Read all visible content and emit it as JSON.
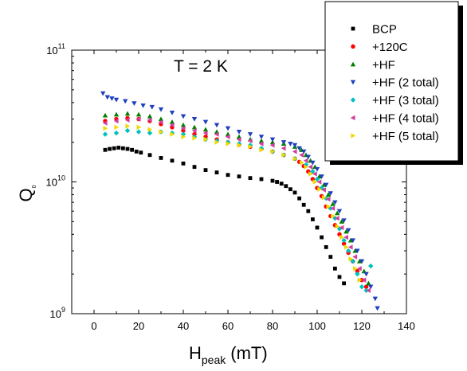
{
  "chart_data": {
    "type": "scatter",
    "annotation": "T = 2 K",
    "xlabel": {
      "main": "H",
      "sub": "peak",
      "unit": "(mT)"
    },
    "ylabel": {
      "main": "Q",
      "sub": "0"
    },
    "xlim": [
      -10,
      140
    ],
    "ylim": [
      1000000000,
      100000000000
    ],
    "y_scale": "log",
    "grid": false,
    "legend_position": "top-right",
    "x_ticks": [
      {
        "value": 0,
        "label": "0"
      },
      {
        "value": 20,
        "label": "20"
      },
      {
        "value": 40,
        "label": "40"
      },
      {
        "value": 60,
        "label": "60"
      },
      {
        "value": 80,
        "label": "80"
      },
      {
        "value": 100,
        "label": "100"
      },
      {
        "value": 120,
        "label": "120"
      },
      {
        "value": 140,
        "label": "140"
      }
    ],
    "y_ticks": [
      {
        "value": 1000000000,
        "base": "10",
        "exp": "9"
      },
      {
        "value": 10000000000,
        "base": "10",
        "exp": "10"
      },
      {
        "value": 100000000000,
        "base": "10",
        "exp": "11"
      }
    ],
    "series": [
      {
        "name": "BCP",
        "color": "#000000",
        "marker": "square",
        "x": [
          5,
          7,
          9,
          11,
          13,
          15,
          17,
          19,
          21,
          25,
          30,
          35,
          40,
          45,
          50,
          55,
          60,
          65,
          70,
          75,
          80,
          82,
          84,
          86,
          88,
          90,
          92,
          94,
          96,
          98,
          100,
          102,
          104,
          106,
          108,
          110,
          112
        ],
        "y": [
          17500000000.0,
          17800000000.0,
          18000000000.0,
          18200000000.0,
          18000000000.0,
          17800000000.0,
          17500000000.0,
          17000000000.0,
          16700000000.0,
          16000000000.0,
          15200000000.0,
          14500000000.0,
          13800000000.0,
          13000000000.0,
          12300000000.0,
          11800000000.0,
          11300000000.0,
          11000000000.0,
          10700000000.0,
          10500000000.0,
          10200000000.0,
          10000000000.0,
          9700000000.0,
          9300000000.0,
          8800000000.0,
          8300000000.0,
          7500000000.0,
          6700000000.0,
          6000000000.0,
          5200000000.0,
          4500000000.0,
          3800000000.0,
          3200000000.0,
          2700000000.0,
          2200000000.0,
          1900000000.0,
          1700000000.0
        ]
      },
      {
        "name": "+120C",
        "color": "#ff0000",
        "marker": "circle",
        "x": [
          5,
          10,
          15,
          20,
          25,
          30,
          35,
          40,
          45,
          50,
          55,
          60,
          65,
          70,
          75,
          80,
          85,
          90,
          92,
          94,
          96,
          98,
          100,
          102,
          104,
          106,
          108,
          110,
          112,
          114,
          116,
          118,
          120,
          122
        ],
        "y": [
          29000000000.0,
          30000000000.0,
          30500000000.0,
          30000000000.0,
          29000000000.0,
          27500000000.0,
          26000000000.0,
          24500000000.0,
          23000000000.0,
          22000000000.0,
          21000000000.0,
          20000000000.0,
          19200000000.0,
          18500000000.0,
          17800000000.0,
          17000000000.0,
          16000000000.0,
          15000000000.0,
          14200000000.0,
          13200000000.0,
          12000000000.0,
          10500000000.0,
          9000000000.0,
          7800000000.0,
          6500000000.0,
          5500000000.0,
          4700000000.0,
          4000000000.0,
          3400000000.0,
          2900000000.0,
          2500000000.0,
          2100000000.0,
          1800000000.0,
          1600000000.0
        ]
      },
      {
        "name": "+HF",
        "color": "#008000",
        "marker": "triangle-up",
        "x": [
          5,
          10,
          15,
          20,
          25,
          30,
          35,
          40,
          45,
          50,
          55,
          60,
          65,
          70,
          75,
          80,
          85,
          90,
          93,
          95,
          97,
          99,
          101,
          103,
          105,
          107,
          109,
          111,
          113,
          115,
          117,
          119,
          121,
          123
        ],
        "y": [
          32000000000.0,
          32500000000.0,
          33000000000.0,
          32500000000.0,
          31500000000.0,
          30000000000.0,
          28500000000.0,
          27000000000.0,
          26000000000.0,
          25000000000.0,
          24000000000.0,
          23000000000.0,
          22000000000.0,
          21000000000.0,
          20500000000.0,
          20000000000.0,
          19500000000.0,
          18500000000.0,
          17500000000.0,
          16000000000.0,
          14500000000.0,
          13000000000.0,
          11000000000.0,
          9500000000.0,
          8000000000.0,
          6800000000.0,
          5800000000.0,
          5000000000.0,
          4200000000.0,
          3600000000.0,
          3000000000.0,
          2500000000.0,
          2100000000.0,
          1700000000.0
        ]
      },
      {
        "name": "+HF (2 total)",
        "color": "#1f3fbf",
        "marker": "triangle-down",
        "x": [
          4,
          6,
          8,
          10,
          14,
          18,
          22,
          26,
          30,
          35,
          40,
          45,
          50,
          55,
          60,
          65,
          70,
          75,
          80,
          85,
          88,
          90,
          92,
          94,
          96,
          98,
          100,
          102,
          104,
          106,
          108,
          110,
          112,
          114,
          116,
          118,
          120,
          122,
          124,
          126,
          127
        ],
        "y": [
          47000000000.0,
          44000000000.0,
          43000000000.0,
          42000000000.0,
          41000000000.0,
          39500000000.0,
          38000000000.0,
          37000000000.0,
          35500000000.0,
          33500000000.0,
          31500000000.0,
          30000000000.0,
          28500000000.0,
          27000000000.0,
          25500000000.0,
          24000000000.0,
          23000000000.0,
          22000000000.0,
          21000000000.0,
          20000000000.0,
          19500000000.0,
          19000000000.0,
          18000000000.0,
          17000000000.0,
          15500000000.0,
          14000000000.0,
          12500000000.0,
          11000000000.0,
          9500000000.0,
          8200000000.0,
          7000000000.0,
          6000000000.0,
          5100000000.0,
          4300000000.0,
          3600000000.0,
          3000000000.0,
          2500000000.0,
          2000000000.0,
          1600000000.0,
          1300000000.0,
          1100000000.0
        ]
      },
      {
        "name": "+HF (3 total)",
        "color": "#00c0c0",
        "marker": "diamond",
        "x": [
          5,
          10,
          15,
          20,
          25,
          30,
          35,
          40,
          45,
          50,
          55,
          60,
          65,
          70,
          75,
          80,
          85,
          90,
          95,
          98,
          100,
          102,
          104,
          106,
          108,
          110,
          112,
          114,
          116,
          118,
          120,
          122,
          124
        ],
        "y": [
          23000000000.0,
          23500000000.0,
          24500000000.0,
          24000000000.0,
          23500000000.0,
          24000000000.0,
          23500000000.0,
          23000000000.0,
          22000000000.0,
          21000000000.0,
          20500000000.0,
          20000000000.0,
          19500000000.0,
          19000000000.0,
          18000000000.0,
          17000000000.0,
          16000000000.0,
          15000000000.0,
          13500000000.0,
          12000000000.0,
          10500000000.0,
          9000000000.0,
          7500000000.0,
          6300000000.0,
          5300000000.0,
          4400000000.0,
          3600000000.0,
          3000000000.0,
          2500000000.0,
          2000000000.0,
          1600000000.0,
          1500000000.0,
          2300000000.0
        ]
      },
      {
        "name": "+HF (4 total)",
        "color": "#d0409f",
        "marker": "triangle-left",
        "x": [
          5,
          10,
          15,
          20,
          25,
          30,
          35,
          40,
          45,
          50,
          55,
          60,
          65,
          70,
          75,
          80,
          85,
          90,
          93,
          95,
          97,
          99,
          101,
          103,
          105,
          107,
          109,
          111,
          113,
          115,
          117,
          119,
          121,
          123
        ],
        "y": [
          28000000000.0,
          29000000000.0,
          29500000000.0,
          30000000000.0,
          29500000000.0,
          28500000000.0,
          27000000000.0,
          25500000000.0,
          24500000000.0,
          23500000000.0,
          23000000000.0,
          22000000000.0,
          21000000000.0,
          20500000000.0,
          19500000000.0,
          19000000000.0,
          18000000000.0,
          17000000000.0,
          16000000000.0,
          14500000000.0,
          13000000000.0,
          11500000000.0,
          10000000000.0,
          8700000000.0,
          7400000000.0,
          6300000000.0,
          5300000000.0,
          4500000000.0,
          3800000000.0,
          3200000000.0,
          2700000000.0,
          2200000000.0,
          1800000000.0,
          1500000000.0
        ]
      },
      {
        "name": "+HF (5 total)",
        "color": "#f0d800",
        "marker": "triangle-right",
        "x": [
          5,
          10,
          15,
          20,
          25,
          30,
          35,
          40,
          45,
          50,
          55,
          60,
          65,
          70,
          75,
          80,
          85,
          90,
          93,
          95,
          97,
          99,
          101,
          103,
          105,
          107,
          109,
          111,
          113,
          115,
          117,
          119
        ],
        "y": [
          25500000000.0,
          26000000000.0,
          26500000000.0,
          26000000000.0,
          25000000000.0,
          24000000000.0,
          23000000000.0,
          22000000000.0,
          21500000000.0,
          21000000000.0,
          20000000000.0,
          19500000000.0,
          19000000000.0,
          18500000000.0,
          17500000000.0,
          17000000000.0,
          16000000000.0,
          15000000000.0,
          14000000000.0,
          13000000000.0,
          11500000000.0,
          10000000000.0,
          8800000000.0,
          7600000000.0,
          6500000000.0,
          5500000000.0,
          4600000000.0,
          3800000000.0,
          3200000000.0,
          2600000000.0,
          2200000000.0,
          1800000000.0
        ]
      }
    ]
  }
}
